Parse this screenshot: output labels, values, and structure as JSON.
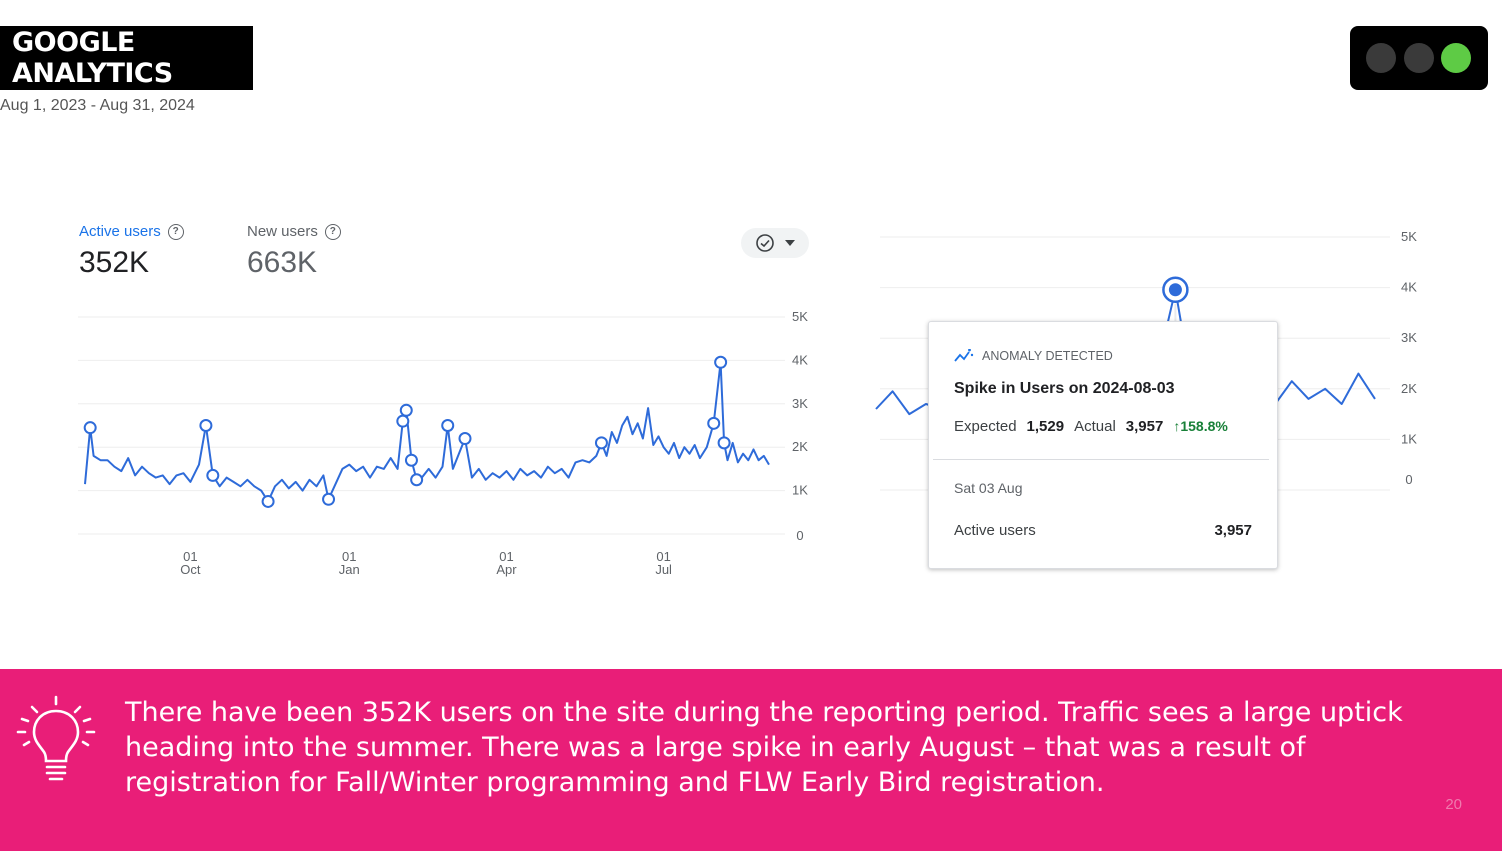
{
  "header": {
    "title": "GOOGLE ANALYTICS",
    "date_range": "Aug 1, 2023 - Aug 31, 2024"
  },
  "window_controls": {
    "colors": [
      "#3a3a3a",
      "#3a3a3a",
      "#5ecb45"
    ]
  },
  "metrics": {
    "active_users": {
      "label": "Active users",
      "value": "352K",
      "color": "#1a73e8"
    },
    "new_users": {
      "label": "New users",
      "value": "663K"
    }
  },
  "control": {
    "icon": "check-circle-icon",
    "dropdown_icon": "caret-down-icon"
  },
  "chart_data": [
    {
      "type": "line",
      "series": [
        {
          "name": "Active users",
          "color": "#2e6bd9",
          "points": [
            [
              "2023-08-01",
              1150
            ],
            [
              "2023-08-04",
              2450
            ],
            [
              "2023-08-06",
              1800
            ],
            [
              "2023-08-10",
              1700
            ],
            [
              "2023-08-14",
              1700
            ],
            [
              "2023-08-18",
              1550
            ],
            [
              "2023-08-22",
              1450
            ],
            [
              "2023-08-26",
              1750
            ],
            [
              "2023-08-30",
              1350
            ],
            [
              "2023-09-03",
              1550
            ],
            [
              "2023-09-07",
              1400
            ],
            [
              "2023-09-11",
              1300
            ],
            [
              "2023-09-15",
              1350
            ],
            [
              "2023-09-19",
              1150
            ],
            [
              "2023-09-23",
              1350
            ],
            [
              "2023-09-27",
              1400
            ],
            [
              "2023-10-01",
              1200
            ],
            [
              "2023-10-06",
              1600
            ],
            [
              "2023-10-10",
              2500
            ],
            [
              "2023-10-14",
              1350
            ],
            [
              "2023-10-18",
              1100
            ],
            [
              "2023-10-22",
              1300
            ],
            [
              "2023-10-26",
              1200
            ],
            [
              "2023-10-30",
              1100
            ],
            [
              "2023-11-03",
              1250
            ],
            [
              "2023-11-07",
              1100
            ],
            [
              "2023-11-11",
              1000
            ],
            [
              "2023-11-15",
              750
            ],
            [
              "2023-11-19",
              1100
            ],
            [
              "2023-11-23",
              1250
            ],
            [
              "2023-11-27",
              1050
            ],
            [
              "2023-12-01",
              1200
            ],
            [
              "2023-12-05",
              1000
            ],
            [
              "2023-12-09",
              1250
            ],
            [
              "2023-12-13",
              1100
            ],
            [
              "2023-12-17",
              1350
            ],
            [
              "2023-12-20",
              800
            ],
            [
              "2023-12-24",
              1150
            ],
            [
              "2023-12-28",
              1500
            ],
            [
              "2024-01-01",
              1600
            ],
            [
              "2024-01-05",
              1450
            ],
            [
              "2024-01-09",
              1550
            ],
            [
              "2024-01-13",
              1300
            ],
            [
              "2024-01-17",
              1550
            ],
            [
              "2024-01-21",
              1500
            ],
            [
              "2024-01-25",
              1750
            ],
            [
              "2024-01-29",
              1500
            ],
            [
              "2024-02-01",
              2600
            ],
            [
              "2024-02-03",
              2850
            ],
            [
              "2024-02-06",
              1700
            ],
            [
              "2024-02-09",
              1250
            ],
            [
              "2024-02-12",
              1300
            ],
            [
              "2024-02-16",
              1500
            ],
            [
              "2024-02-20",
              1300
            ],
            [
              "2024-02-24",
              1550
            ],
            [
              "2024-02-27",
              2500
            ],
            [
              "2024-03-01",
              1500
            ],
            [
              "2024-03-05",
              1900
            ],
            [
              "2024-03-08",
              2200
            ],
            [
              "2024-03-12",
              1300
            ],
            [
              "2024-03-16",
              1500
            ],
            [
              "2024-03-20",
              1250
            ],
            [
              "2024-03-24",
              1400
            ],
            [
              "2024-03-28",
              1300
            ],
            [
              "2024-04-01",
              1450
            ],
            [
              "2024-04-05",
              1250
            ],
            [
              "2024-04-09",
              1500
            ],
            [
              "2024-04-13",
              1350
            ],
            [
              "2024-04-17",
              1450
            ],
            [
              "2024-04-21",
              1300
            ],
            [
              "2024-04-25",
              1550
            ],
            [
              "2024-04-29",
              1400
            ],
            [
              "2024-05-03",
              1500
            ],
            [
              "2024-05-07",
              1300
            ],
            [
              "2024-05-11",
              1650
            ],
            [
              "2024-05-15",
              1700
            ],
            [
              "2024-05-19",
              1650
            ],
            [
              "2024-05-23",
              1800
            ],
            [
              "2024-05-26",
              2100
            ],
            [
              "2024-05-29",
              1800
            ],
            [
              "2024-06-01",
              2350
            ],
            [
              "2024-06-04",
              2100
            ],
            [
              "2024-06-07",
              2500
            ],
            [
              "2024-06-10",
              2700
            ],
            [
              "2024-06-13",
              2300
            ],
            [
              "2024-06-16",
              2550
            ],
            [
              "2024-06-19",
              2200
            ],
            [
              "2024-06-22",
              2900
            ],
            [
              "2024-06-25",
              2050
            ],
            [
              "2024-06-28",
              2250
            ],
            [
              "2024-07-01",
              2000
            ],
            [
              "2024-07-04",
              1850
            ],
            [
              "2024-07-07",
              2100
            ],
            [
              "2024-07-10",
              1750
            ],
            [
              "2024-07-13",
              2000
            ],
            [
              "2024-07-16",
              1850
            ],
            [
              "2024-07-19",
              2050
            ],
            [
              "2024-07-22",
              1750
            ],
            [
              "2024-07-26",
              2000
            ],
            [
              "2024-07-30",
              2550
            ],
            [
              "2024-08-03",
              3957
            ],
            [
              "2024-08-05",
              2100
            ],
            [
              "2024-08-07",
              1700
            ],
            [
              "2024-08-10",
              2100
            ],
            [
              "2024-08-13",
              1650
            ],
            [
              "2024-08-16",
              1850
            ],
            [
              "2024-08-19",
              1700
            ],
            [
              "2024-08-22",
              1950
            ],
            [
              "2024-08-25",
              1700
            ],
            [
              "2024-08-28",
              1800
            ],
            [
              "2024-08-31",
              1600
            ]
          ]
        }
      ],
      "anomalies": [
        [
          "2023-08-04",
          2450
        ],
        [
          "2023-10-10",
          2500
        ],
        [
          "2023-10-14",
          1350
        ],
        [
          "2023-11-15",
          750
        ],
        [
          "2023-12-20",
          800
        ],
        [
          "2024-02-01",
          2600
        ],
        [
          "2024-02-03",
          2850
        ],
        [
          "2024-02-06",
          1700
        ],
        [
          "2024-02-09",
          1250
        ],
        [
          "2024-02-27",
          2500
        ],
        [
          "2024-03-08",
          2200
        ],
        [
          "2024-05-26",
          2100
        ],
        [
          "2024-07-30",
          2550
        ],
        [
          "2024-08-03",
          3957
        ],
        [
          "2024-08-05",
          2100
        ]
      ],
      "x_ticks": [
        {
          "date": "2023-10-01",
          "day": "01",
          "month": "Oct"
        },
        {
          "date": "2024-01-01",
          "day": "01",
          "month": "Jan"
        },
        {
          "date": "2024-04-01",
          "day": "01",
          "month": "Apr"
        },
        {
          "date": "2024-07-01",
          "day": "01",
          "month": "Jul"
        }
      ],
      "y_ticks": [
        "0",
        "1K",
        "2K",
        "3K",
        "4K",
        "5K"
      ],
      "ylim": [
        0,
        5000
      ],
      "grid": true
    },
    {
      "type": "line",
      "series": [
        {
          "name": "Active users",
          "color": "#2e6bd9",
          "points": [
            [
              "2024-07-16",
              1600
            ],
            [
              "2024-07-17",
              1950
            ],
            [
              "2024-07-18",
              1500
            ],
            [
              "2024-07-19",
              1700
            ],
            [
              "2024-07-20",
              1600
            ],
            [
              "2024-07-21",
              1750
            ],
            [
              "2024-07-22",
              1550
            ],
            [
              "2024-07-23",
              1650
            ],
            [
              "2024-07-24",
              1550
            ],
            [
              "2024-07-25",
              1800
            ],
            [
              "2024-07-26",
              1600
            ],
            [
              "2024-07-27",
              2950
            ],
            [
              "2024-07-28",
              2550
            ],
            [
              "2024-07-29",
              1700
            ],
            [
              "2024-07-30",
              2550
            ],
            [
              "2024-07-31",
              2100
            ],
            [
              "2024-08-01",
              2300
            ],
            [
              "2024-08-02",
              2550
            ],
            [
              "2024-08-03",
              3957
            ],
            [
              "2024-08-04",
              2050
            ],
            [
              "2024-08-05",
              2050
            ],
            [
              "2024-08-06",
              2400
            ],
            [
              "2024-08-07",
              1700
            ],
            [
              "2024-08-08",
              2100
            ],
            [
              "2024-08-09",
              1700
            ],
            [
              "2024-08-10",
              2150
            ],
            [
              "2024-08-11",
              1800
            ],
            [
              "2024-08-12",
              2000
            ],
            [
              "2024-08-13",
              1700
            ],
            [
              "2024-08-14",
              2300
            ],
            [
              "2024-08-15",
              1800
            ]
          ]
        }
      ],
      "anomalies": [
        [
          "2024-07-27",
          2950
        ],
        [
          "2024-08-03",
          3957
        ],
        [
          "2024-07-30",
          2550
        ],
        [
          "2024-08-07",
          1700
        ]
      ],
      "highlight": [
        "2024-08-03",
        3957
      ],
      "y_ticks": [
        "0",
        "1K",
        "2K",
        "3K",
        "4K",
        "5K"
      ],
      "ylim": [
        0,
        5000
      ]
    }
  ],
  "tooltip": {
    "tag": "ANOMALY DETECTED",
    "title": "Spike in Users on 2024-08-03",
    "expected_label": "Expected",
    "expected_value": "1,529",
    "actual_label": "Actual",
    "actual_value": "3,957",
    "change": "158.8%",
    "date": "Sat 03 Aug",
    "metric_label": "Active users",
    "metric_value": "3,957"
  },
  "banner": {
    "color": "#e91e78",
    "icon": "lightbulb-icon",
    "text": "There have been 352K users on the site during the reporting period. Traffic sees a large uptick heading into the summer. There was a large spike in early August – that was a result of registration for Fall/Winter programming and FLW Early Bird registration.",
    "page_number": "20"
  }
}
